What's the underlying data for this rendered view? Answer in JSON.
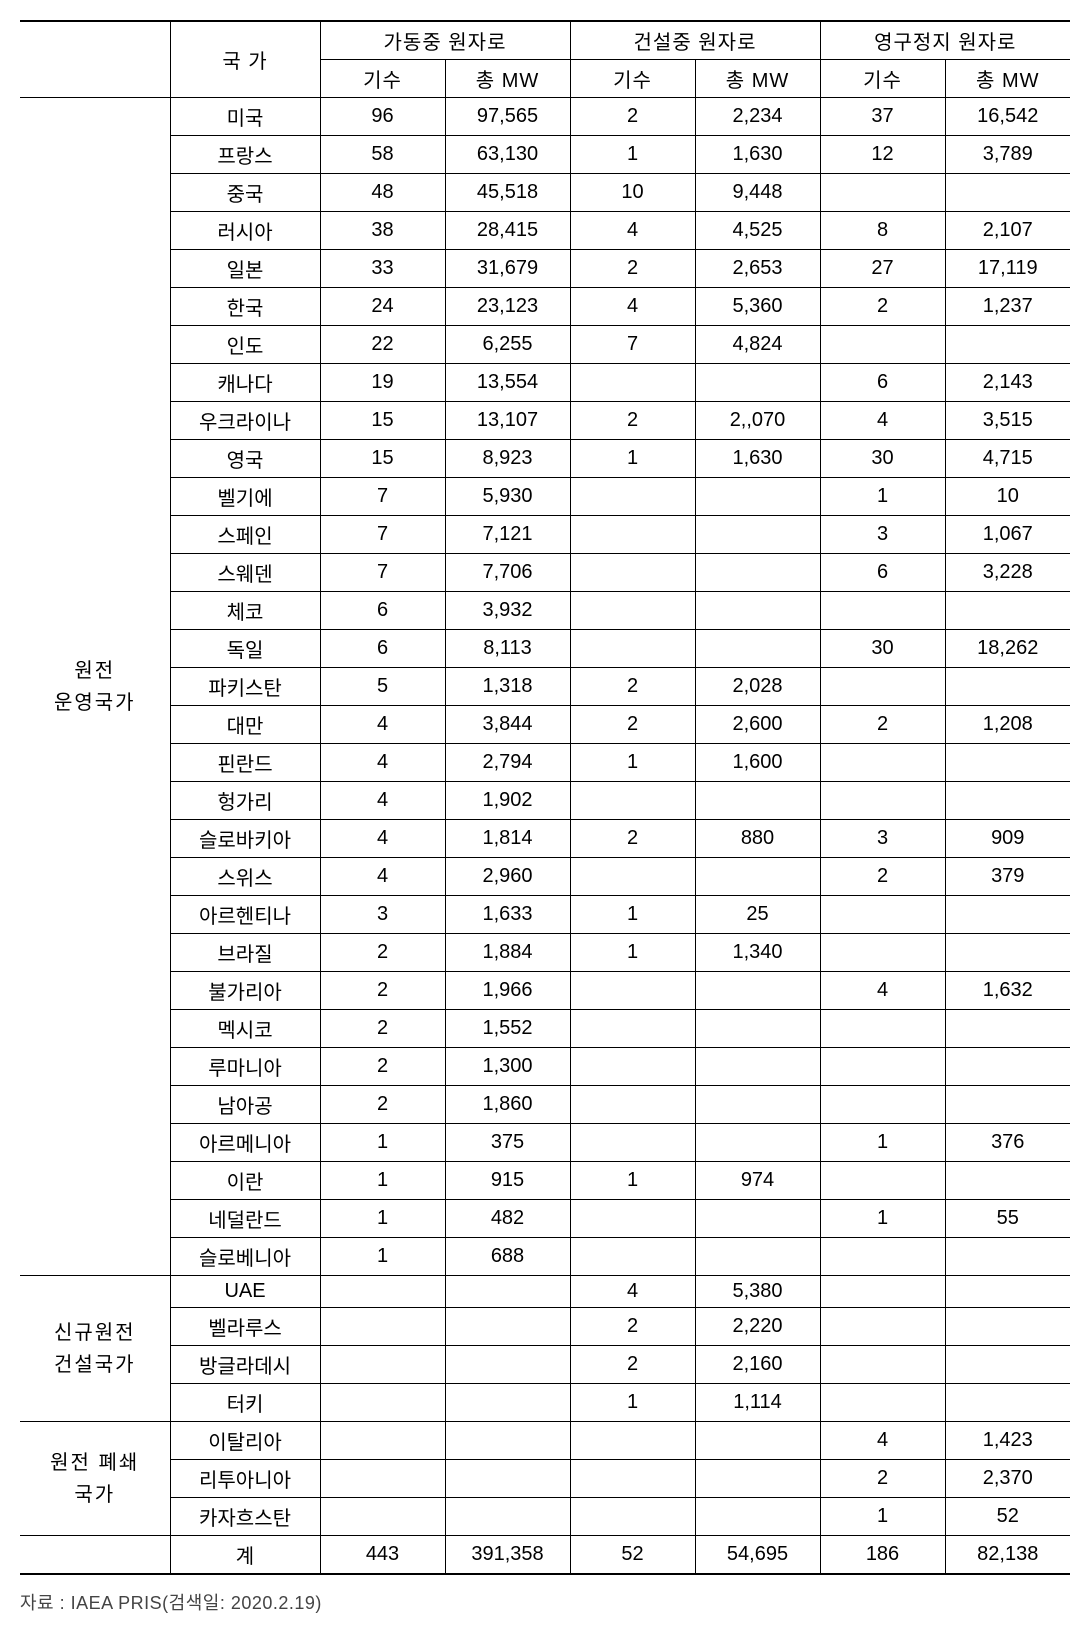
{
  "table": {
    "header": {
      "country": "국  가",
      "operating": "가동중 원자로",
      "construction": "건설중 원자로",
      "shutdown": "영구정지 원자로",
      "units": "기수",
      "mw": "총 MW"
    },
    "groups": [
      {
        "label": "원전\n운영국가",
        "rows": [
          {
            "c": "미국",
            "ou": "96",
            "om": "97,565",
            "cu": "2",
            "cm": "2,234",
            "su": "37",
            "sm": "16,542"
          },
          {
            "c": "프랑스",
            "ou": "58",
            "om": "63,130",
            "cu": "1",
            "cm": "1,630",
            "su": "12",
            "sm": "3,789"
          },
          {
            "c": "중국",
            "ou": "48",
            "om": "45,518",
            "cu": "10",
            "cm": "9,448",
            "su": "",
            "sm": ""
          },
          {
            "c": "러시아",
            "ou": "38",
            "om": "28,415",
            "cu": "4",
            "cm": "4,525",
            "su": "8",
            "sm": "2,107"
          },
          {
            "c": "일본",
            "ou": "33",
            "om": "31,679",
            "cu": "2",
            "cm": "2,653",
            "su": "27",
            "sm": "17,119"
          },
          {
            "c": "한국",
            "ou": "24",
            "om": "23,123",
            "cu": "4",
            "cm": "5,360",
            "su": "2",
            "sm": "1,237"
          },
          {
            "c": "인도",
            "ou": "22",
            "om": "6,255",
            "cu": "7",
            "cm": "4,824",
            "su": "",
            "sm": ""
          },
          {
            "c": "캐나다",
            "ou": "19",
            "om": "13,554",
            "cu": "",
            "cm": "",
            "su": "6",
            "sm": "2,143"
          },
          {
            "c": "우크라이나",
            "ou": "15",
            "om": "13,107",
            "cu": "2",
            "cm": "2,,070",
            "su": "4",
            "sm": "3,515"
          },
          {
            "c": "영국",
            "ou": "15",
            "om": "8,923",
            "cu": "1",
            "cm": "1,630",
            "su": "30",
            "sm": "4,715"
          },
          {
            "c": "벨기에",
            "ou": "7",
            "om": "5,930",
            "cu": "",
            "cm": "",
            "su": "1",
            "sm": "10"
          },
          {
            "c": "스페인",
            "ou": "7",
            "om": "7,121",
            "cu": "",
            "cm": "",
            "su": "3",
            "sm": "1,067"
          },
          {
            "c": "스웨덴",
            "ou": "7",
            "om": "7,706",
            "cu": "",
            "cm": "",
            "su": "6",
            "sm": "3,228"
          },
          {
            "c": "체코",
            "ou": "6",
            "om": "3,932",
            "cu": "",
            "cm": "",
            "su": "",
            "sm": ""
          },
          {
            "c": "독일",
            "ou": "6",
            "om": "8,113",
            "cu": "",
            "cm": "",
            "su": "30",
            "sm": "18,262"
          },
          {
            "c": "파키스탄",
            "ou": "5",
            "om": "1,318",
            "cu": "2",
            "cm": "2,028",
            "su": "",
            "sm": ""
          },
          {
            "c": "대만",
            "ou": "4",
            "om": "3,844",
            "cu": "2",
            "cm": "2,600",
            "su": "2",
            "sm": "1,208"
          },
          {
            "c": "핀란드",
            "ou": "4",
            "om": "2,794",
            "cu": "1",
            "cm": "1,600",
            "su": "",
            "sm": ""
          },
          {
            "c": "헝가리",
            "ou": "4",
            "om": "1,902",
            "cu": "",
            "cm": "",
            "su": "",
            "sm": ""
          },
          {
            "c": "슬로바키아",
            "ou": "4",
            "om": "1,814",
            "cu": "2",
            "cm": "880",
            "su": "3",
            "sm": "909"
          },
          {
            "c": "스위스",
            "ou": "4",
            "om": "2,960",
            "cu": "",
            "cm": "",
            "su": "2",
            "sm": "379"
          },
          {
            "c": "아르헨티나",
            "ou": "3",
            "om": "1,633",
            "cu": "1",
            "cm": "25",
            "su": "",
            "sm": ""
          },
          {
            "c": "브라질",
            "ou": "2",
            "om": "1,884",
            "cu": "1",
            "cm": "1,340",
            "su": "",
            "sm": ""
          },
          {
            "c": "불가리아",
            "ou": "2",
            "om": "1,966",
            "cu": "",
            "cm": "",
            "su": "4",
            "sm": "1,632"
          },
          {
            "c": "멕시코",
            "ou": "2",
            "om": "1,552",
            "cu": "",
            "cm": "",
            "su": "",
            "sm": ""
          },
          {
            "c": "루마니아",
            "ou": "2",
            "om": "1,300",
            "cu": "",
            "cm": "",
            "su": "",
            "sm": ""
          },
          {
            "c": "남아공",
            "ou": "2",
            "om": "1,860",
            "cu": "",
            "cm": "",
            "su": "",
            "sm": ""
          },
          {
            "c": "아르메니아",
            "ou": "1",
            "om": "375",
            "cu": "",
            "cm": "",
            "su": "1",
            "sm": "376"
          },
          {
            "c": "이란",
            "ou": "1",
            "om": "915",
            "cu": "1",
            "cm": "974",
            "su": "",
            "sm": ""
          },
          {
            "c": "네덜란드",
            "ou": "1",
            "om": "482",
            "cu": "",
            "cm": "",
            "su": "1",
            "sm": "55"
          },
          {
            "c": "슬로베니아",
            "ou": "1",
            "om": "688",
            "cu": "",
            "cm": "",
            "su": "",
            "sm": ""
          }
        ]
      },
      {
        "label": "신규원전\n건설국가",
        "rows": [
          {
            "c": "UAE",
            "ou": "",
            "om": "",
            "cu": "4",
            "cm": "5,380",
            "su": "",
            "sm": ""
          },
          {
            "c": "벨라루스",
            "ou": "",
            "om": "",
            "cu": "2",
            "cm": "2,220",
            "su": "",
            "sm": ""
          },
          {
            "c": "방글라데시",
            "ou": "",
            "om": "",
            "cu": "2",
            "cm": "2,160",
            "su": "",
            "sm": ""
          },
          {
            "c": "터키",
            "ou": "",
            "om": "",
            "cu": "1",
            "cm": "1,114",
            "su": "",
            "sm": ""
          }
        ]
      },
      {
        "label": "원전 폐쇄\n국가",
        "rows": [
          {
            "c": "이탈리아",
            "ou": "",
            "om": "",
            "cu": "",
            "cm": "",
            "su": "4",
            "sm": "1,423"
          },
          {
            "c": "리투아니아",
            "ou": "",
            "om": "",
            "cu": "",
            "cm": "",
            "su": "2",
            "sm": "2,370"
          },
          {
            "c": "카자흐스탄",
            "ou": "",
            "om": "",
            "cu": "",
            "cm": "",
            "su": "1",
            "sm": "52"
          }
        ]
      }
    ],
    "total": {
      "label": "계",
      "ou": "443",
      "om": "391,358",
      "cu": "52",
      "cm": "54,695",
      "su": "186",
      "sm": "82,138"
    }
  },
  "footnote": "자료 : IAEA PRIS(검색일: 2020.2.19)"
}
